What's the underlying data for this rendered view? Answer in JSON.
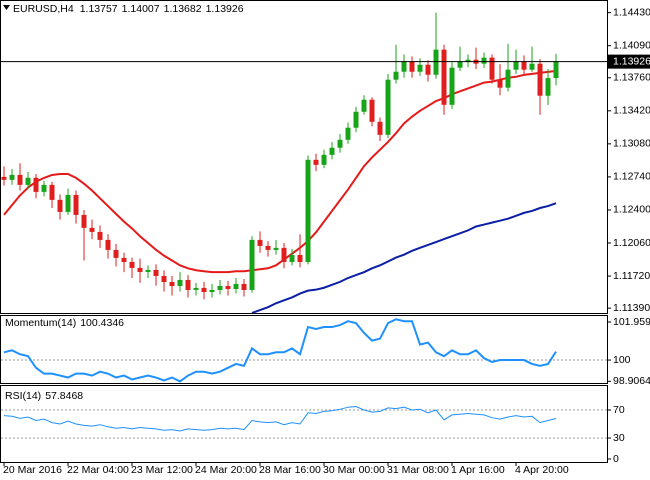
{
  "chart_data": [
    {
      "type": "candlestick",
      "title": "EURUSD,H4",
      "categories": [
        "20 Mar 2016",
        null,
        null,
        null,
        null,
        null,
        null,
        null,
        "22 Mar 04:00",
        null,
        null,
        null,
        null,
        null,
        null,
        null,
        "23 Mar 12:00",
        null,
        null,
        null,
        null,
        null,
        null,
        null,
        "24 Mar 20:00",
        null,
        null,
        null,
        null,
        null,
        null,
        null,
        "28 Mar 16:00",
        null,
        null,
        null,
        null,
        null,
        null,
        null,
        "30 Mar 00:00",
        null,
        null,
        null,
        null,
        null,
        null,
        null,
        "31 Mar 08:00",
        null,
        null,
        null,
        null,
        null,
        null,
        null,
        "1 Apr 16:00",
        null,
        null,
        null,
        null,
        null,
        null,
        null,
        "4 Apr 20:00",
        null,
        null,
        null,
        null,
        null
      ],
      "open": [
        1.1274,
        1.1271,
        1.12761,
        1.12658,
        1.12731,
        1.12586,
        1.12658,
        1.12504,
        1.1238,
        1.12555,
        1.12349,
        1.12216,
        1.12174,
        1.12092,
        1.11989,
        1.11907,
        1.11865,
        1.11804,
        1.11762,
        1.11783,
        1.11721,
        1.11659,
        1.11618,
        1.1168,
        1.11577,
        1.11598,
        1.11556,
        1.11577,
        1.11618,
        1.11587,
        1.11639,
        1.11577,
        1.12092,
        1.1203,
        1.11989,
        1.1201,
        1.11865,
        1.11937,
        1.11865,
        1.12916,
        1.12864,
        1.12967,
        1.1304,
        1.13122,
        1.13246,
        1.1341,
        1.13534,
        1.13307,
        1.13173,
        1.1374,
        1.13822,
        1.13925,
        1.13822,
        1.13894,
        1.13791,
        1.14049,
        1.13482,
        1.13864,
        1.13925,
        1.13946,
        1.13905,
        1.13967,
        1.1374,
        1.13658,
        1.13843,
        1.13925,
        1.13843,
        1.13905,
        1.13575,
        1.13757
      ],
      "high": [
        1.1285,
        1.1282,
        1.1288,
        1.1279,
        1.1277,
        1.127,
        1.1269,
        1.1256,
        1.1262,
        1.126,
        1.124,
        1.123,
        1.1224,
        1.1215,
        1.1205,
        1.1196,
        1.1191,
        1.119,
        1.1183,
        1.1184,
        1.1178,
        1.1172,
        1.1176,
        1.1173,
        1.1165,
        1.1166,
        1.1164,
        1.1168,
        1.1167,
        1.117,
        1.1169,
        1.1213,
        1.1218,
        1.1208,
        1.1209,
        1.1206,
        1.12,
        1.1215,
        1.1296,
        1.1298,
        1.1302,
        1.131,
        1.1318,
        1.133,
        1.1346,
        1.1358,
        1.1356,
        1.1335,
        1.138,
        1.141,
        1.14,
        1.1398,
        1.1396,
        1.1394,
        1.1443,
        1.141,
        1.1392,
        1.1408,
        1.14,
        1.1407,
        1.1402,
        1.14,
        1.139,
        1.1411,
        1.1405,
        1.1399,
        1.1408,
        1.1395,
        1.1385,
        1.14007
      ],
      "low": [
        1.1265,
        1.1266,
        1.126,
        1.1261,
        1.1252,
        1.1254,
        1.1242,
        1.123,
        1.1235,
        1.1226,
        1.1188,
        1.121,
        1.1201,
        1.119,
        1.1182,
        1.1176,
        1.117,
        1.1165,
        1.117,
        1.1162,
        1.1156,
        1.1152,
        1.1156,
        1.115,
        1.1152,
        1.1148,
        1.115,
        1.1153,
        1.1152,
        1.1154,
        1.1151,
        1.1155,
        1.1196,
        1.1192,
        1.1194,
        1.118,
        1.1183,
        1.1181,
        1.1184,
        1.128,
        1.1283,
        1.1292,
        1.1299,
        1.1308,
        1.132,
        1.1338,
        1.1326,
        1.1311,
        1.1314,
        1.137,
        1.1376,
        1.1376,
        1.1378,
        1.1372,
        1.1375,
        1.1338,
        1.1344,
        1.1383,
        1.1387,
        1.1385,
        1.1386,
        1.137,
        1.1358,
        1.1362,
        1.138,
        1.1379,
        1.1382,
        1.1338,
        1.1348,
        1.13682
      ],
      "close": [
        1.1271,
        1.12761,
        1.12658,
        1.12731,
        1.12586,
        1.12658,
        1.12504,
        1.1238,
        1.12555,
        1.12349,
        1.12216,
        1.12174,
        1.12092,
        1.11989,
        1.11907,
        1.11865,
        1.11804,
        1.11762,
        1.11783,
        1.11721,
        1.11659,
        1.11618,
        1.1168,
        1.11577,
        1.11598,
        1.11556,
        1.11577,
        1.11618,
        1.11587,
        1.11639,
        1.11577,
        1.12092,
        1.1203,
        1.11989,
        1.1201,
        1.11865,
        1.11937,
        1.11865,
        1.12916,
        1.12864,
        1.12967,
        1.1304,
        1.13122,
        1.13246,
        1.1341,
        1.13534,
        1.13307,
        1.13173,
        1.1374,
        1.13822,
        1.13925,
        1.13822,
        1.13894,
        1.13791,
        1.14049,
        1.13482,
        1.13864,
        1.13925,
        1.13946,
        1.13905,
        1.13967,
        1.1374,
        1.13658,
        1.13843,
        1.13925,
        1.13843,
        1.13905,
        1.13575,
        1.13757,
        1.13926
      ],
      "up_color": "#18a418",
      "down_color": "#e01e1e",
      "overlays": [
        {
          "color": "#e41a1a",
          "values": [
            1.1235,
            1.1245,
            1.1255,
            1.1263,
            1.1269,
            1.1273,
            1.1276,
            1.1277,
            1.1277,
            1.1273,
            1.1267,
            1.126,
            1.1252,
            1.1244,
            1.1236,
            1.1228,
            1.1221,
            1.1213,
            1.1206,
            1.1199,
            1.1193,
            1.1188,
            1.1183,
            1.118,
            1.1178,
            1.1177,
            1.1176,
            1.1176,
            1.1176,
            1.1177,
            1.1177,
            1.1178,
            1.1179,
            1.118,
            1.1183,
            1.1189,
            1.1195,
            1.1201,
            1.1208,
            1.1217,
            1.1228,
            1.1239,
            1.125,
            1.1261,
            1.1273,
            1.1285,
            1.1294,
            1.1302,
            1.131,
            1.1319,
            1.1329,
            1.1336,
            1.1342,
            1.1347,
            1.1352,
            1.1355,
            1.1359,
            1.1362,
            1.1365,
            1.1368,
            1.1371,
            1.1372,
            1.1374,
            1.1376,
            1.1377,
            1.1379,
            1.138,
            1.1381,
            1.1382,
            1.1383
          ]
        },
        {
          "color": "#0b1fa6",
          "values": [
            null,
            null,
            null,
            null,
            null,
            null,
            null,
            null,
            null,
            null,
            null,
            null,
            null,
            null,
            null,
            null,
            null,
            null,
            null,
            null,
            null,
            null,
            null,
            null,
            null,
            null,
            null,
            null,
            null,
            null,
            null,
            1.1134,
            1.1137,
            1.114,
            1.1144,
            1.1147,
            1.115,
            1.1154,
            1.1157,
            1.1158,
            1.116,
            1.1163,
            1.1166,
            1.117,
            1.1173,
            1.1176,
            1.118,
            1.1183,
            1.1187,
            1.1191,
            1.1194,
            1.1198,
            1.1201,
            1.1204,
            1.1207,
            1.121,
            1.1213,
            1.1216,
            1.1219,
            1.1223,
            1.1225,
            1.1227,
            1.1229,
            1.1231,
            1.1234,
            1.1237,
            1.1239,
            1.1242,
            1.1244,
            1.1247
          ]
        }
      ],
      "ylim": [
        1.1134,
        1.1456
      ],
      "yticks": [
        {
          "value": 1.1443,
          "label": "1.14430"
        },
        {
          "value": 1.1409,
          "label": "1.14090"
        },
        {
          "value": 1.1376,
          "label": "1.13760"
        },
        {
          "value": 1.1342,
          "label": "1.13420"
        },
        {
          "value": 1.1308,
          "label": "1.13080"
        },
        {
          "value": 1.1274,
          "label": "1.12740"
        },
        {
          "value": 1.124,
          "label": "1.12400"
        },
        {
          "value": 1.1206,
          "label": "1.12060"
        },
        {
          "value": 1.1172,
          "label": "1.11720"
        },
        {
          "value": 1.1139,
          "label": "1.11390"
        }
      ]
    },
    {
      "type": "line",
      "title": "Momentum(14)",
      "color": "#1e90ff",
      "values": [
        100.4,
        100.5,
        100.3,
        100.2,
        99.6,
        99.3,
        99.3,
        99.2,
        99.1,
        99.3,
        99.3,
        99.2,
        99.4,
        99.3,
        99.1,
        99.2,
        99.0,
        99.1,
        99.2,
        99.1,
        98.95,
        99.1,
        98.9,
        99.2,
        99.4,
        99.4,
        99.3,
        99.4,
        99.6,
        99.8,
        99.7,
        100.6,
        100.3,
        100.3,
        100.4,
        100.4,
        100.6,
        100.3,
        101.7,
        101.6,
        101.7,
        101.7,
        101.8,
        102.0,
        101.9,
        101.4,
        101.0,
        101.1,
        101.9,
        102.1,
        102.0,
        102.0,
        100.8,
        100.9,
        100.4,
        100.2,
        100.5,
        100.3,
        100.3,
        100.5,
        100.1,
        99.9,
        100.0,
        100.0,
        100.0,
        100.0,
        99.8,
        99.7,
        99.8,
        100.4346
      ],
      "ylim": [
        98.87,
        102.32
      ],
      "yticks": [
        101.9595,
        100,
        98.9064
      ],
      "levels": [
        100
      ]
    },
    {
      "type": "line",
      "title": "RSI(14)",
      "color": "#1e90ff",
      "values": [
        62,
        61,
        58,
        60,
        55,
        57,
        52,
        50,
        54,
        50,
        48,
        47,
        49,
        46,
        44,
        45,
        43,
        45,
        44,
        43,
        41,
        42,
        40,
        43,
        42,
        41,
        42,
        44,
        43,
        44,
        42,
        55,
        53,
        52,
        53,
        49,
        52,
        50,
        66,
        65,
        68,
        69,
        71,
        74,
        75,
        70,
        67,
        68,
        73,
        72,
        74,
        70,
        71,
        66,
        70,
        56,
        63,
        64,
        65,
        64,
        63,
        59,
        57,
        60,
        62,
        60,
        61,
        52,
        55,
        57.8468
      ],
      "ylim": [
        0,
        100
      ],
      "yticks": [
        70,
        30,
        0
      ],
      "levels": [
        70,
        30
      ]
    }
  ]
}
